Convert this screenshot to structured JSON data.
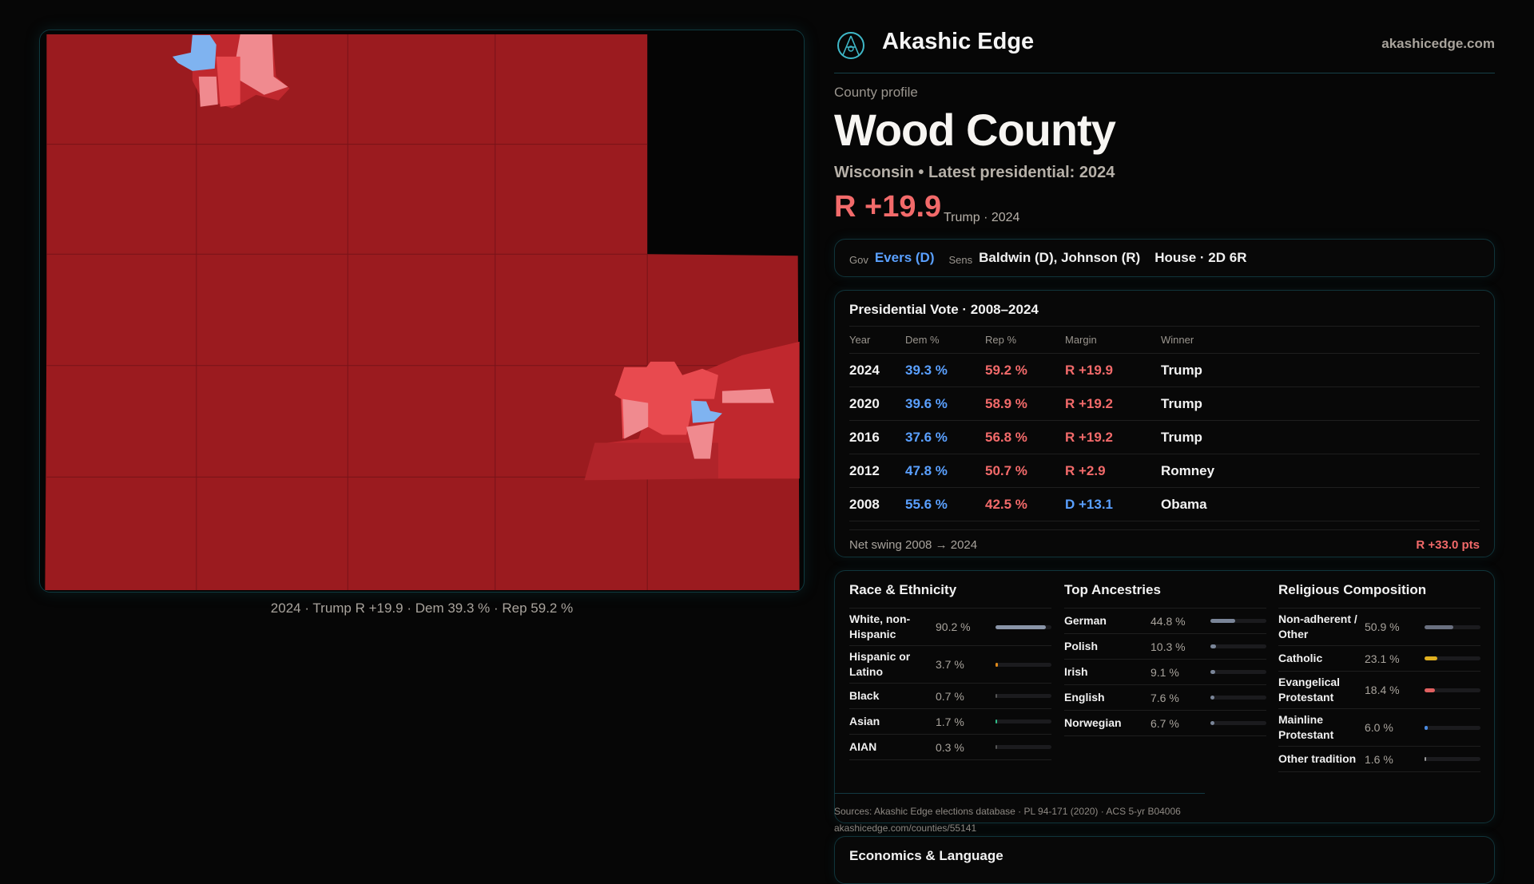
{
  "brand": {
    "name": "Akashic Edge",
    "domain": "akashicedge.com",
    "logo_icon": "akashic-logo-icon"
  },
  "profile": {
    "eyebrow": "County profile",
    "title": "Wood County",
    "subtitle": "Wisconsin • Latest presidential: 2024",
    "margin": "R +19.9",
    "margin_sub": "Trump · 2024"
  },
  "map": {
    "caption": "2024 · Trump R +19.9 · Dem 39.3 % · Rep 59.2 %",
    "colors": {
      "safe_r": "#9b1b1f",
      "lean_r": "#e84a4f",
      "tilt_r": "#f08a8f",
      "d": "#7fb3f0"
    }
  },
  "officials": {
    "gov_label": "Gov",
    "gov": "Evers (D)",
    "sens_label": "Sens",
    "sens": "Baldwin (D), Johnson (R)",
    "house": "House · 2D 6R"
  },
  "votes": {
    "title": "Presidential Vote · 2008–2024",
    "headers": [
      "Year",
      "Dem %",
      "Rep %",
      "Margin",
      "Winner"
    ],
    "rows": [
      {
        "year": "2024",
        "dem": "39.3 %",
        "rep": "59.2 %",
        "margin": "R +19.9",
        "winner": "Trump",
        "party": "rep"
      },
      {
        "year": "2020",
        "dem": "39.6 %",
        "rep": "58.9 %",
        "margin": "R +19.2",
        "winner": "Trump",
        "party": "rep"
      },
      {
        "year": "2016",
        "dem": "37.6 %",
        "rep": "56.8 %",
        "margin": "R +19.2",
        "winner": "Trump",
        "party": "rep"
      },
      {
        "year": "2012",
        "dem": "47.8 %",
        "rep": "50.7 %",
        "margin": "R +2.9",
        "winner": "Romney",
        "party": "rep"
      },
      {
        "year": "2008",
        "dem": "55.6 %",
        "rep": "42.5 %",
        "margin": "D +13.1",
        "winner": "Obama",
        "party": "dem"
      }
    ],
    "swing_label": "Net swing 2008 → 2024",
    "swing_value": "R +33.0 pts"
  },
  "race": {
    "title": "Race & Ethnicity",
    "items": [
      {
        "name": "White, non-Hispanic",
        "pct": "90.2 %",
        "value": 90.2,
        "color": "#8a95a8"
      },
      {
        "name": "Hispanic or Latino",
        "pct": "3.7 %",
        "value": 3.7,
        "color": "#e08a1a"
      },
      {
        "name": "Black",
        "pct": "0.7 %",
        "value": 0.7,
        "color": "#555"
      },
      {
        "name": "Asian",
        "pct": "1.7 %",
        "value": 1.7,
        "color": "#2fbf8a"
      },
      {
        "name": "AIAN",
        "pct": "0.3 %",
        "value": 0.3,
        "color": "#555"
      }
    ]
  },
  "ancestry": {
    "title": "Top Ancestries",
    "items": [
      {
        "name": "German",
        "pct": "44.8 %",
        "value": 44.8,
        "color": "#7a8598"
      },
      {
        "name": "Polish",
        "pct": "10.3 %",
        "value": 10.3,
        "color": "#7a8598"
      },
      {
        "name": "Irish",
        "pct": "9.1 %",
        "value": 9.1,
        "color": "#7a8598"
      },
      {
        "name": "English",
        "pct": "7.6 %",
        "value": 7.6,
        "color": "#7a8598"
      },
      {
        "name": "Norwegian",
        "pct": "6.7 %",
        "value": 6.7,
        "color": "#7a8598"
      }
    ]
  },
  "religion": {
    "title": "Religious Composition",
    "items": [
      {
        "name": "Non-adherent / Other",
        "pct": "50.9 %",
        "value": 50.9,
        "color": "#6a7080"
      },
      {
        "name": "Catholic",
        "pct": "23.1 %",
        "value": 23.1,
        "color": "#e0b020"
      },
      {
        "name": "Evangelical Protestant",
        "pct": "18.4 %",
        "value": 18.4,
        "color": "#e06060"
      },
      {
        "name": "Mainline Protestant",
        "pct": "6.0 %",
        "value": 6.0,
        "color": "#4a8ae0"
      },
      {
        "name": "Other tradition",
        "pct": "1.6 %",
        "value": 1.6,
        "color": "#999"
      }
    ]
  },
  "sources": {
    "text": "Sources: Akashic Edge elections database · PL 94-171 (2020) · ACS 5-yr B04006",
    "url": "akashicedge.com/counties/55141"
  },
  "econ": {
    "title": "Economics & Language"
  }
}
